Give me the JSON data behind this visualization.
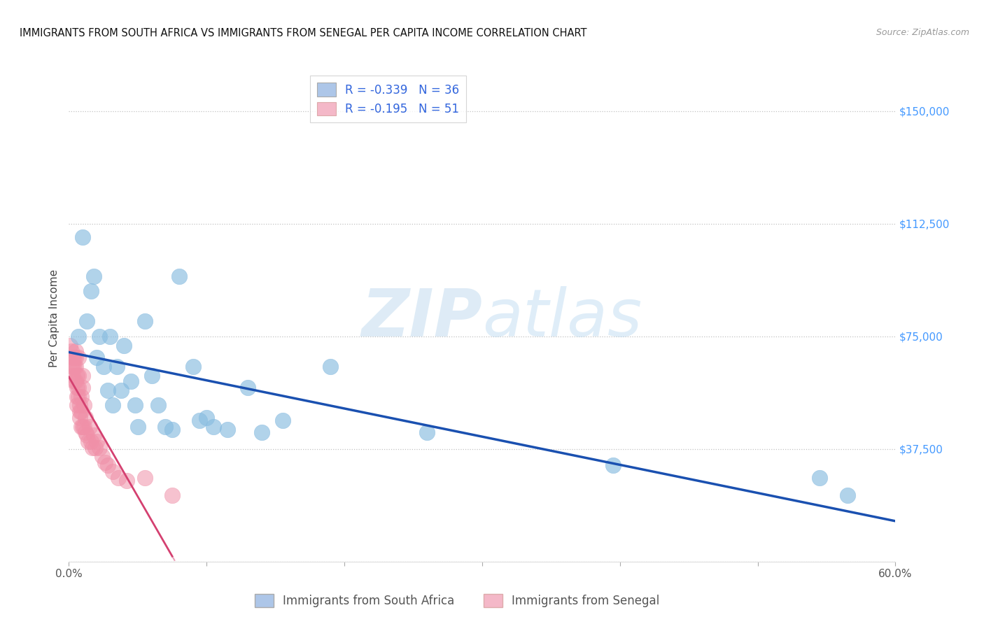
{
  "title": "IMMIGRANTS FROM SOUTH AFRICA VS IMMIGRANTS FROM SENEGAL PER CAPITA INCOME CORRELATION CHART",
  "source": "Source: ZipAtlas.com",
  "ylabel": "Per Capita Income",
  "y_ticks": [
    0,
    37500,
    75000,
    112500,
    150000
  ],
  "y_tick_labels": [
    "",
    "$37,500",
    "$75,000",
    "$112,500",
    "$150,000"
  ],
  "xlim": [
    0.0,
    0.6
  ],
  "ylim": [
    0,
    162000
  ],
  "legend1_label": "R = -0.339   N = 36",
  "legend2_label": "R = -0.195   N = 51",
  "legend_color1": "#adc6e8",
  "legend_color2": "#f4b8c8",
  "scatter_color1": "#88bce0",
  "scatter_color2": "#f090a8",
  "line_color1": "#1a50b0",
  "line_color2": "#d44070",
  "watermark_zip": "ZIP",
  "watermark_atlas": "atlas",
  "background_color": "#ffffff",
  "title_fontsize": 10.5,
  "source_fontsize": 9,
  "south_africa_x": [
    0.007,
    0.01,
    0.013,
    0.016,
    0.018,
    0.02,
    0.022,
    0.025,
    0.028,
    0.03,
    0.032,
    0.035,
    0.038,
    0.04,
    0.045,
    0.048,
    0.05,
    0.055,
    0.06,
    0.065,
    0.07,
    0.075,
    0.08,
    0.09,
    0.095,
    0.1,
    0.105,
    0.115,
    0.13,
    0.14,
    0.155,
    0.19,
    0.26,
    0.395,
    0.545,
    0.565
  ],
  "south_africa_y": [
    75000,
    108000,
    80000,
    90000,
    95000,
    68000,
    75000,
    65000,
    57000,
    75000,
    52000,
    65000,
    57000,
    72000,
    60000,
    52000,
    45000,
    80000,
    62000,
    52000,
    45000,
    44000,
    95000,
    65000,
    47000,
    48000,
    45000,
    44000,
    58000,
    43000,
    47000,
    65000,
    43000,
    32000,
    28000,
    22000
  ],
  "senegal_x": [
    0.001,
    0.002,
    0.002,
    0.003,
    0.003,
    0.003,
    0.004,
    0.004,
    0.004,
    0.005,
    0.005,
    0.005,
    0.005,
    0.006,
    0.006,
    0.006,
    0.006,
    0.007,
    0.007,
    0.007,
    0.007,
    0.008,
    0.008,
    0.008,
    0.009,
    0.009,
    0.009,
    0.01,
    0.01,
    0.01,
    0.011,
    0.011,
    0.012,
    0.012,
    0.013,
    0.014,
    0.015,
    0.016,
    0.017,
    0.018,
    0.019,
    0.02,
    0.022,
    0.024,
    0.026,
    0.028,
    0.032,
    0.036,
    0.042,
    0.055,
    0.075
  ],
  "senegal_y": [
    72000,
    70000,
    65000,
    68000,
    65000,
    62000,
    68000,
    65000,
    60000,
    70000,
    68000,
    65000,
    60000,
    62000,
    58000,
    55000,
    52000,
    68000,
    62000,
    58000,
    55000,
    52000,
    50000,
    48000,
    55000,
    50000,
    45000,
    62000,
    58000,
    45000,
    52000,
    45000,
    48000,
    43000,
    42000,
    40000,
    45000,
    40000,
    38000,
    42000,
    38000,
    40000,
    38000,
    35000,
    33000,
    32000,
    30000,
    28000,
    27000,
    28000,
    22000
  ],
  "legend_bottom1": "Immigrants from South Africa",
  "legend_bottom2": "Immigrants from Senegal"
}
